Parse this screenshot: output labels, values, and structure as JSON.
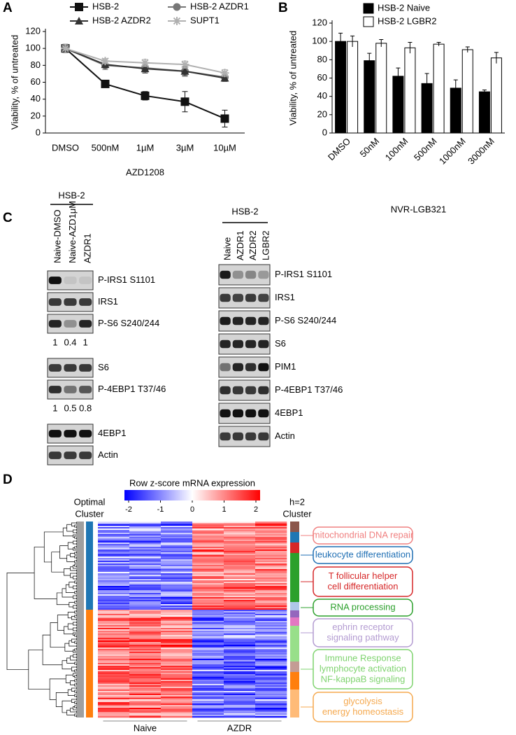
{
  "panel_labels": [
    "A",
    "B",
    "C",
    "D"
  ],
  "chart_data": [
    {
      "type": "line",
      "x_label": "AZD1208",
      "y_label": "Viability, % of untreated",
      "categories": [
        "DMSO",
        "500nM",
        "1µM",
        "3µM",
        "10µM"
      ],
      "ylim": [
        0,
        120
      ],
      "yticks": [
        0,
        20,
        40,
        60,
        80,
        100,
        120
      ],
      "grid": false,
      "series": [
        {
          "name": "HSB-2",
          "color": "#111111",
          "marker": "square",
          "values": [
            100,
            58,
            44,
            37,
            17
          ],
          "errors": [
            5,
            3,
            5,
            12,
            10
          ]
        },
        {
          "name": "HSB-2 AZDR1",
          "color": "#777777",
          "marker": "circle",
          "values": [
            100,
            80,
            77,
            73,
            66
          ],
          "errors": [
            5,
            5,
            6,
            6,
            5
          ]
        },
        {
          "name": "HSB-2 AZDR2",
          "color": "#333333",
          "marker": "triangle",
          "values": [
            100,
            81,
            76,
            73,
            65
          ],
          "errors": [
            5,
            4,
            5,
            5,
            4
          ]
        },
        {
          "name": "SUPT1",
          "color": "#b0b0b0",
          "marker": "star",
          "values": [
            100,
            85,
            83,
            81,
            71
          ],
          "errors": [
            5,
            3,
            4,
            4,
            4
          ]
        }
      ]
    },
    {
      "type": "bar",
      "x_label": "NVR-LGB321",
      "y_label": "Viability, % of untreated",
      "categories": [
        "DMSO",
        "50nM",
        "100nM",
        "500nM",
        "1000nM",
        "3000nM"
      ],
      "ylim": [
        0,
        120
      ],
      "yticks": [
        0,
        20,
        40,
        60,
        80,
        100,
        120
      ],
      "grid": false,
      "series": [
        {
          "name": "HSB-2 Naive",
          "color": "#000000",
          "values": [
            100,
            79,
            62,
            54,
            49,
            45
          ],
          "errors": [
            9,
            8,
            9,
            11,
            9,
            2
          ]
        },
        {
          "name": "HSB-2 LGBR2",
          "color": "#ffffff",
          "values": [
            100,
            98,
            93,
            97,
            91,
            82
          ],
          "errors": [
            6,
            4,
            6,
            2,
            3,
            6
          ]
        }
      ]
    }
  ],
  "blots": [
    {
      "header": "HSB-2",
      "lanes": [
        "Naive-DMSO",
        "Naive-AZD1μM",
        "AZDR1"
      ],
      "rows": [
        {
          "label": "P-IRS1 S1101"
        },
        {
          "label": "IRS1"
        },
        {
          "label": "P-S6 S240/244",
          "quant": [
            1,
            0.4,
            1
          ]
        },
        {
          "label": "S6"
        },
        {
          "label": "P-4EBP1 T37/46",
          "quant": [
            1,
            0.5,
            0.8
          ]
        },
        {
          "label": "4EBP1"
        },
        {
          "label": "Actin"
        }
      ]
    },
    {
      "header": "HSB-2",
      "lanes": [
        "Naive",
        "AZDR1",
        "AZDR2",
        "LGBR2"
      ],
      "rows": [
        {
          "label": "P-IRS1 S1101"
        },
        {
          "label": "IRS1"
        },
        {
          "label": "P-S6 S240/244"
        },
        {
          "label": "S6"
        },
        {
          "label": "PIM1"
        },
        {
          "label": "P-4EBP1 T37/46"
        },
        {
          "label": "4EBP1"
        },
        {
          "label": "Actin"
        }
      ]
    }
  ],
  "heatmap": {
    "title": "Row z-score mRNA expression",
    "colorbar": {
      "lim": [
        -2,
        2
      ],
      "ticks": [
        -2,
        -1,
        0,
        1,
        2
      ]
    },
    "left_bar_label": [
      "Optimal",
      "Cluster"
    ],
    "right_bar_label": [
      "h=2",
      "Cluster"
    ],
    "groups": [
      "Naive",
      "AZDR"
    ],
    "annotations": [
      {
        "lines": [
          "mitochondrial DNA repair"
        ],
        "color": "#f08080"
      },
      {
        "lines": [
          "leukocyte differentiation"
        ],
        "color": "#1f6fb4"
      },
      {
        "lines": [
          "T follicular helper",
          "cell differentiation"
        ],
        "color": "#d62728"
      },
      {
        "lines": [
          "RNA processing"
        ],
        "color": "#2ca02c"
      },
      {
        "lines": [
          "ephrin receptor",
          "signaling pathway"
        ],
        "color": "#b39bd1"
      },
      {
        "lines": [
          "Immune Response",
          "lymphocyte activation",
          "NF-kappaB signaling"
        ],
        "color": "#7fd36f"
      },
      {
        "lines": [
          "glycolysis",
          "energy homeostasis"
        ],
        "color": "#f5a94f"
      }
    ]
  }
}
